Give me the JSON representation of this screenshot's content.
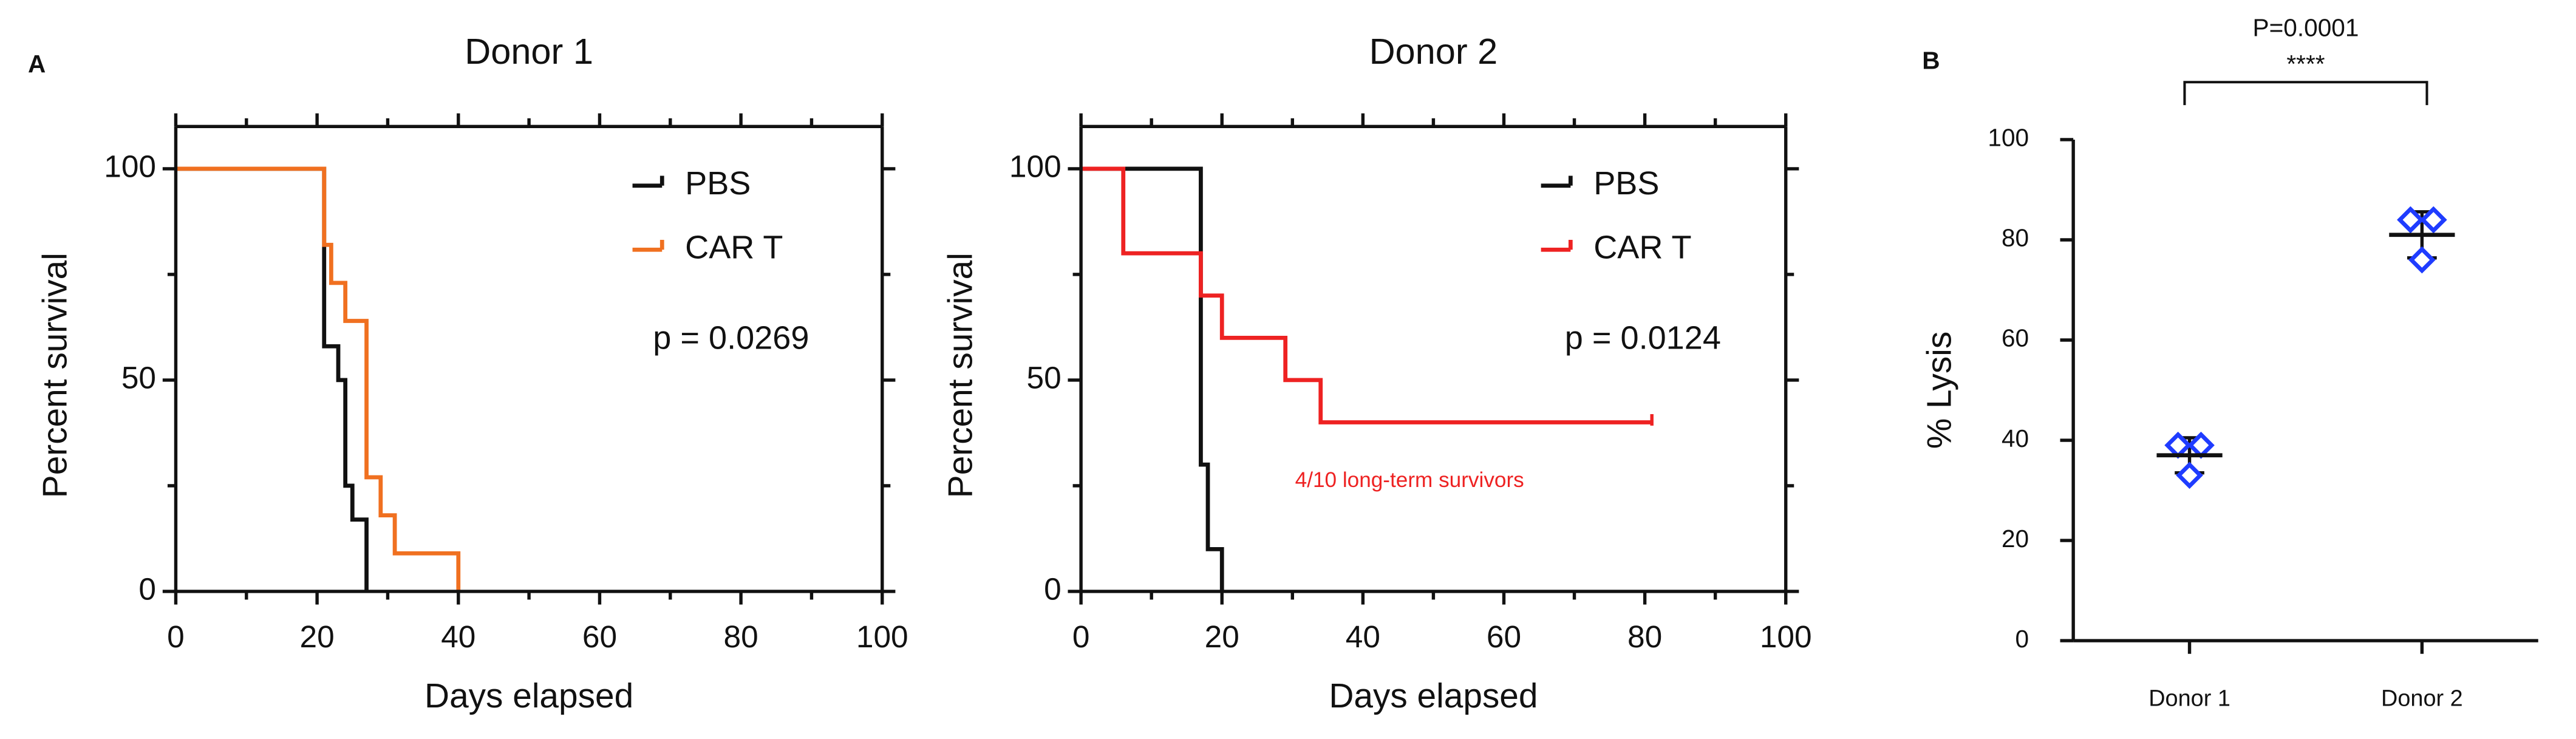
{
  "chart_data": [
    {
      "type": "step",
      "panel_label": "A",
      "title": "Donor 1",
      "xlabel": "Days elapsed",
      "ylabel": "Percent survival",
      "xlim": [
        0,
        100
      ],
      "xticks": [
        0,
        20,
        40,
        60,
        80,
        100
      ],
      "xminorticks": [
        10,
        30,
        50,
        70,
        90
      ],
      "ylim": [
        0,
        110
      ],
      "yticks": [
        0,
        50,
        100
      ],
      "yminorticks": [
        25,
        75
      ],
      "mirror_axes": true,
      "legend": "upper right",
      "series": [
        {
          "name": "PBS",
          "color": "#111111",
          "x": [
            0,
            21,
            23,
            24,
            25,
            27
          ],
          "values": [
            100,
            58,
            50,
            25,
            17,
            0
          ]
        },
        {
          "name": "CAR T",
          "color": "#f07020",
          "x": [
            0,
            21,
            22,
            24,
            27,
            29,
            31,
            40
          ],
          "values": [
            100,
            82,
            73,
            64,
            27,
            18,
            9,
            0
          ]
        }
      ],
      "annotations": [
        "p = 0.0269"
      ]
    },
    {
      "type": "step",
      "title": "Donor 2",
      "xlabel": "Days elapsed",
      "ylabel": "Percent survival",
      "xlim": [
        0,
        100
      ],
      "xticks": [
        0,
        20,
        40,
        60,
        80,
        100
      ],
      "xminorticks": [
        10,
        30,
        50,
        70,
        90
      ],
      "ylim": [
        0,
        110
      ],
      "yticks": [
        0,
        50,
        100
      ],
      "yminorticks": [
        25,
        75
      ],
      "mirror_axes": true,
      "legend": "upper right",
      "series": [
        {
          "name": "PBS",
          "color": "#111111",
          "x": [
            0,
            17,
            18,
            20
          ],
          "values": [
            100,
            30,
            10,
            0
          ]
        },
        {
          "name": "CAR T",
          "color": "#ee2222",
          "x": [
            0,
            6,
            17,
            20,
            29,
            34,
            81
          ],
          "values": [
            100,
            80,
            70,
            60,
            50,
            40,
            40
          ]
        }
      ],
      "annotations": [
        "p = 0.0124",
        "4/10 long-term  survivors"
      ]
    },
    {
      "type": "dot",
      "panel_label": "B",
      "ylabel": "% Lysis",
      "categories": [
        "Donor 1",
        "Donor 2"
      ],
      "ylim": [
        0,
        100
      ],
      "yticks": [
        0,
        20,
        40,
        60,
        80,
        100
      ],
      "color": "#1f3cff",
      "points": [
        [
          39,
          39,
          33
        ],
        [
          84,
          84,
          76
        ]
      ],
      "mean": [
        37,
        81
      ],
      "sd": [
        3.5,
        4.6
      ],
      "annotations": [
        "P=0.0001",
        "****"
      ]
    }
  ]
}
